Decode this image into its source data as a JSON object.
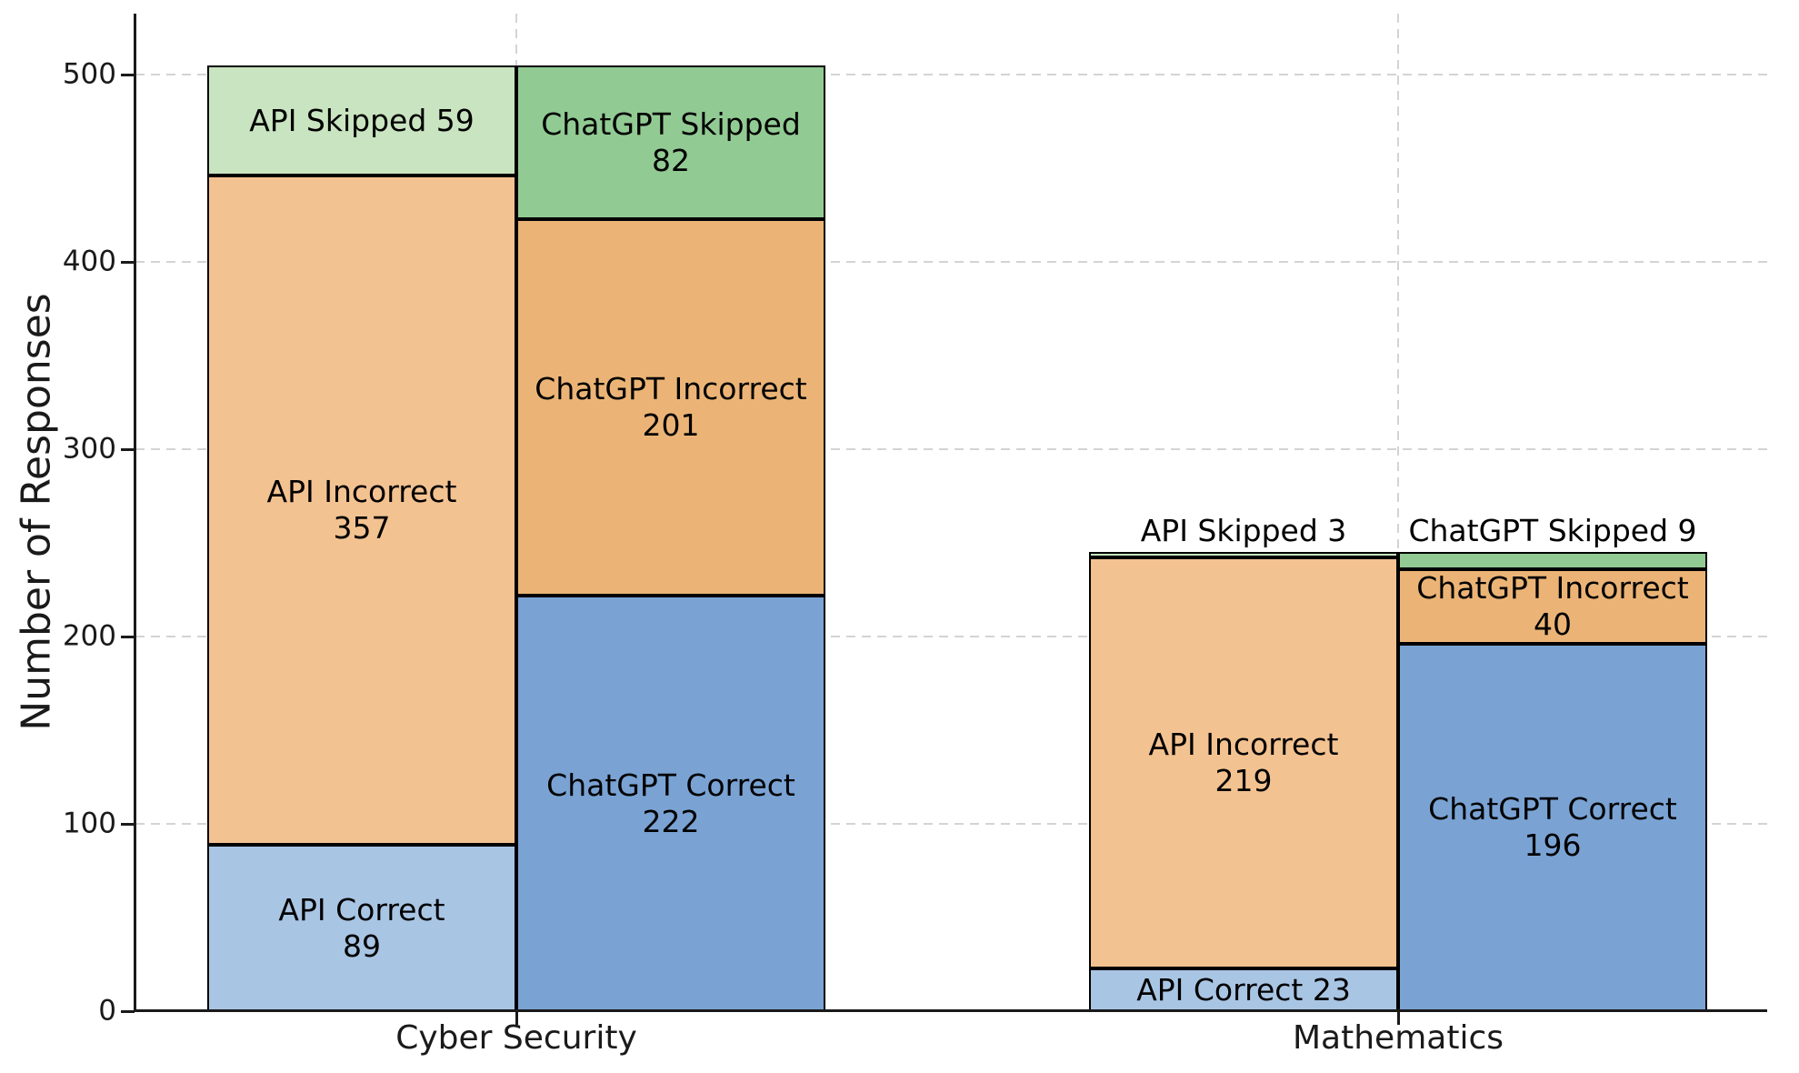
{
  "figure": {
    "ylabel": "Number of Responses",
    "yticklabels": [
      "0",
      "100",
      "200",
      "300",
      "400",
      "500"
    ],
    "xticklabels": [
      "Cyber Security",
      "Mathematics"
    ]
  },
  "chart_data": {
    "type": "bar",
    "stacked": true,
    "title": "",
    "xlabel": "",
    "ylabel": "Number of Responses",
    "categories": [
      "Cyber Security",
      "Mathematics"
    ],
    "ylim": [
      0,
      525
    ],
    "yticks": [
      0,
      100,
      200,
      300,
      400,
      500
    ],
    "grid": "dashed, both axes, light gray, behind bars",
    "legend": "none (segments labeled inline)",
    "bar_edge_color": "#000000",
    "series": [
      {
        "name": "API Correct",
        "color": "#a9c5e4",
        "values": [
          89,
          23
        ]
      },
      {
        "name": "API Incorrect",
        "color": "#f3c291",
        "values": [
          357,
          219
        ]
      },
      {
        "name": "API Skipped",
        "color": "#c9e4c0",
        "values": [
          59,
          3
        ]
      },
      {
        "name": "ChatGPT Correct",
        "color": "#7aa3d4",
        "values": [
          222,
          196
        ]
      },
      {
        "name": "ChatGPT Incorrect",
        "color": "#ebb476",
        "values": [
          201,
          40
        ]
      },
      {
        "name": "ChatGPT Skipped",
        "color": "#92ca93",
        "values": [
          82,
          9
        ]
      }
    ],
    "groups": [
      {
        "category": "Cyber Security",
        "bars": [
          {
            "name": "API",
            "total": 505,
            "segments": [
              {
                "series": "API Correct",
                "value": 89,
                "color": "#a9c5e4",
                "label_lines": [
                  "API Correct",
                  "89"
                ],
                "placement": "inside"
              },
              {
                "series": "API Incorrect",
                "value": 357,
                "color": "#f3c291",
                "label_lines": [
                  "API Incorrect",
                  "357"
                ],
                "placement": "inside"
              },
              {
                "series": "API Skipped",
                "value": 59,
                "color": "#c9e4c0",
                "label_lines": [
                  "API Skipped 59"
                ],
                "placement": "inside"
              }
            ]
          },
          {
            "name": "ChatGPT",
            "total": 505,
            "segments": [
              {
                "series": "ChatGPT Correct",
                "value": 222,
                "color": "#7aa3d4",
                "label_lines": [
                  "ChatGPT Correct",
                  "222"
                ],
                "placement": "inside"
              },
              {
                "series": "ChatGPT Incorrect",
                "value": 201,
                "color": "#ebb476",
                "label_lines": [
                  "ChatGPT Incorrect",
                  "201"
                ],
                "placement": "inside"
              },
              {
                "series": "ChatGPT Skipped",
                "value": 82,
                "color": "#92ca93",
                "label_lines": [
                  "ChatGPT Skipped",
                  "82"
                ],
                "placement": "inside"
              }
            ]
          }
        ]
      },
      {
        "category": "Mathematics",
        "bars": [
          {
            "name": "API",
            "total": 245,
            "segments": [
              {
                "series": "API Correct",
                "value": 23,
                "color": "#a9c5e4",
                "label_lines": [
                  "API Correct 23"
                ],
                "placement": "inside"
              },
              {
                "series": "API Incorrect",
                "value": 219,
                "color": "#f3c291",
                "label_lines": [
                  "API Incorrect",
                  "219"
                ],
                "placement": "inside"
              },
              {
                "series": "API Skipped",
                "value": 3,
                "color": "#c9e4c0",
                "label_lines": [
                  "API Skipped 3"
                ],
                "placement": "above"
              }
            ]
          },
          {
            "name": "ChatGPT",
            "total": 245,
            "segments": [
              {
                "series": "ChatGPT Correct",
                "value": 196,
                "color": "#7aa3d4",
                "label_lines": [
                  "ChatGPT Correct",
                  "196"
                ],
                "placement": "inside"
              },
              {
                "series": "ChatGPT Incorrect",
                "value": 40,
                "color": "#ebb476",
                "label_lines": [
                  "ChatGPT Incorrect",
                  "40"
                ],
                "placement": "inside"
              },
              {
                "series": "ChatGPT Skipped",
                "value": 9,
                "color": "#92ca93",
                "label_lines": [
                  "ChatGPT Skipped 9"
                ],
                "placement": "above"
              }
            ]
          }
        ]
      }
    ]
  }
}
